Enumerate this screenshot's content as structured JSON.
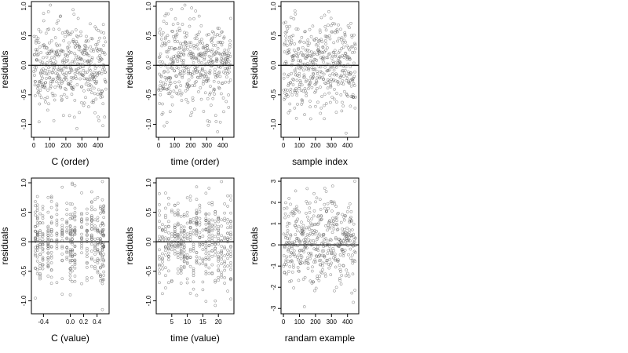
{
  "figure": {
    "background": "#ffffff",
    "point_color": "#555555",
    "zero_line_color": "#000000"
  },
  "chart_data": [
    {
      "type": "scatter",
      "title": "",
      "xlabel": "C (order)",
      "ylabel": "residuals",
      "xlim": [
        -15,
        470
      ],
      "ylim": [
        -1.22,
        1.08
      ],
      "x_ticks": [
        0,
        100,
        200,
        300,
        400
      ],
      "x_tick_labels": [
        "0",
        "100",
        "200",
        "300",
        "400"
      ],
      "y_ticks": [
        1.0,
        0.5,
        0.0,
        -0.5,
        -1.0
      ],
      "y_tick_labels": [
        "1.0",
        "0.5",
        "0.0",
        "-0.5",
        "-1.0"
      ],
      "grid": false,
      "zero_line": 0,
      "series": [
        {
          "n": 450,
          "pattern": "uniform-order",
          "seed": 11
        }
      ]
    },
    {
      "type": "scatter",
      "title": "",
      "xlabel": "time (order)",
      "ylabel": "residuals",
      "xlim": [
        -15,
        470
      ],
      "ylim": [
        -1.22,
        1.08
      ],
      "x_ticks": [
        0,
        100,
        200,
        300,
        400
      ],
      "x_tick_labels": [
        "0",
        "100",
        "200",
        "300",
        "400"
      ],
      "y_ticks": [
        1.0,
        0.5,
        0.0,
        -0.5,
        -1.0
      ],
      "y_tick_labels": [
        "1.0",
        "0.5",
        "0.0",
        "-0.5",
        "-1.0"
      ],
      "grid": false,
      "zero_line": 0,
      "series": [
        {
          "n": 450,
          "pattern": "uniform-order",
          "seed": 23
        }
      ]
    },
    {
      "type": "scatter",
      "title": "",
      "xlabel": "sample index",
      "ylabel": "residuals",
      "xlim": [
        -15,
        470
      ],
      "ylim": [
        -1.22,
        1.08
      ],
      "x_ticks": [
        0,
        100,
        200,
        300,
        400
      ],
      "x_tick_labels": [
        "0",
        "100",
        "200",
        "300",
        "400"
      ],
      "y_ticks": [
        1.0,
        0.5,
        0.0,
        -0.5,
        -1.0
      ],
      "y_tick_labels": [
        "1.0",
        "0.5",
        "0.0",
        "-0.5",
        "-1.0"
      ],
      "grid": false,
      "zero_line": 0,
      "series": [
        {
          "n": 450,
          "pattern": "uniform-order",
          "seed": 37
        }
      ]
    },
    {
      "type": "scatter",
      "title": "",
      "xlabel": "C (value)",
      "ylabel": "residuals",
      "xlim": [
        -0.58,
        0.58
      ],
      "ylim": [
        -1.22,
        1.08
      ],
      "x_ticks": [
        -0.4,
        0.0,
        0.2,
        0.4
      ],
      "x_tick_labels": [
        "-0.4",
        "0.0",
        "0.2",
        "0.4"
      ],
      "y_ticks": [
        1.0,
        0.5,
        0.0,
        -0.5,
        -1.0
      ],
      "y_tick_labels": [
        "1.0",
        "0.5",
        "0.0",
        "-0.5",
        "-1.0"
      ],
      "grid": false,
      "zero_line": 0,
      "series": [
        {
          "n": 450,
          "pattern": "vertical-columns",
          "seed": 41,
          "columns": [
            -0.52,
            -0.49,
            -0.45,
            -0.41,
            -0.33,
            -0.28,
            -0.2,
            -0.12,
            -0.05,
            0.0,
            0.03,
            0.07,
            0.17,
            0.25,
            0.32,
            0.37,
            0.41,
            0.45,
            0.48,
            0.5
          ]
        }
      ]
    },
    {
      "type": "scatter",
      "title": "",
      "xlabel": "time (value)",
      "ylabel": "residuals",
      "xlim": [
        0,
        25
      ],
      "ylim": [
        -1.22,
        1.08
      ],
      "x_ticks": [
        5,
        10,
        15,
        20
      ],
      "x_tick_labels": [
        "5",
        "10",
        "15",
        "20"
      ],
      "y_ticks": [
        1.0,
        0.5,
        0.0,
        -0.5,
        -1.0
      ],
      "y_tick_labels": [
        "1.0",
        "0.5",
        "0.0",
        "-0.5",
        "-1.0"
      ],
      "grid": false,
      "zero_line": 0,
      "series": [
        {
          "n": 450,
          "pattern": "vertical-columns",
          "seed": 53,
          "columns": [
            1,
            2,
            3,
            4,
            5,
            6,
            7,
            8,
            9,
            10,
            11,
            12,
            13,
            14,
            15,
            16,
            17,
            18,
            19,
            20,
            21,
            22,
            23,
            24
          ]
        }
      ]
    },
    {
      "type": "scatter",
      "title": "",
      "xlabel": "randam example",
      "ylabel": "residuals",
      "xlim": [
        -15,
        470
      ],
      "ylim": [
        -3.25,
        3.15
      ],
      "x_ticks": [
        0,
        100,
        200,
        300,
        400
      ],
      "x_tick_labels": [
        "0",
        "100",
        "200",
        "300",
        "400"
      ],
      "y_ticks": [
        3,
        2,
        1,
        0,
        -1,
        -2,
        -3
      ],
      "y_tick_labels": [
        "3",
        "2",
        "1",
        "0",
        "-1",
        "-2",
        "-3"
      ],
      "grid": false,
      "zero_line": 0,
      "series": [
        {
          "n": 450,
          "pattern": "gaussian-order",
          "seed": 67
        }
      ]
    }
  ]
}
